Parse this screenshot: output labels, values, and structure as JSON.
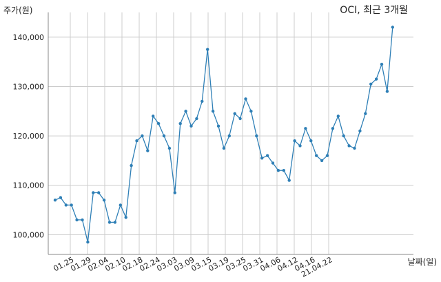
{
  "chart_data": {
    "type": "line",
    "title": "OCI, 최근 3개월",
    "ylabel": "주가(원)",
    "xlabel": "날짜(일)",
    "ylim": [
      96000,
      145000
    ],
    "yticks": [
      100000,
      110000,
      120000,
      130000,
      140000
    ],
    "ytick_labels": [
      "100,000",
      "110,000",
      "120,000",
      "130,000",
      "140,000"
    ],
    "xtick_labels": [
      "01.25",
      "01.29",
      "02.04",
      "02.10",
      "02.18",
      "02.24",
      "03.03",
      "03.09",
      "03.15",
      "03.19",
      "03.25",
      "03.31",
      "04.06",
      "04.12",
      "04.16",
      "21.04.22"
    ],
    "grid": true,
    "line_color": "#2e7fb6",
    "series": [
      {
        "values": [
          107000,
          107500,
          106000,
          106000,
          103000,
          103000,
          98500,
          108500,
          108500,
          107000,
          102500,
          102500,
          106000,
          103500,
          114000,
          119000,
          120000,
          117000,
          124000,
          122500,
          120000,
          117500,
          108500,
          122500,
          125000,
          122000,
          123500,
          127000,
          137500,
          125000,
          122000,
          117500,
          120000,
          124500,
          123500,
          127500,
          125000,
          120000,
          115500,
          116000,
          114500,
          113000,
          113000,
          111000,
          119000,
          118000,
          121500,
          119000,
          116000,
          115000,
          116000,
          121500,
          124000,
          120000,
          118000,
          117500,
          121000,
          124500,
          130500,
          131500,
          134500,
          129000,
          142000
        ]
      }
    ]
  }
}
